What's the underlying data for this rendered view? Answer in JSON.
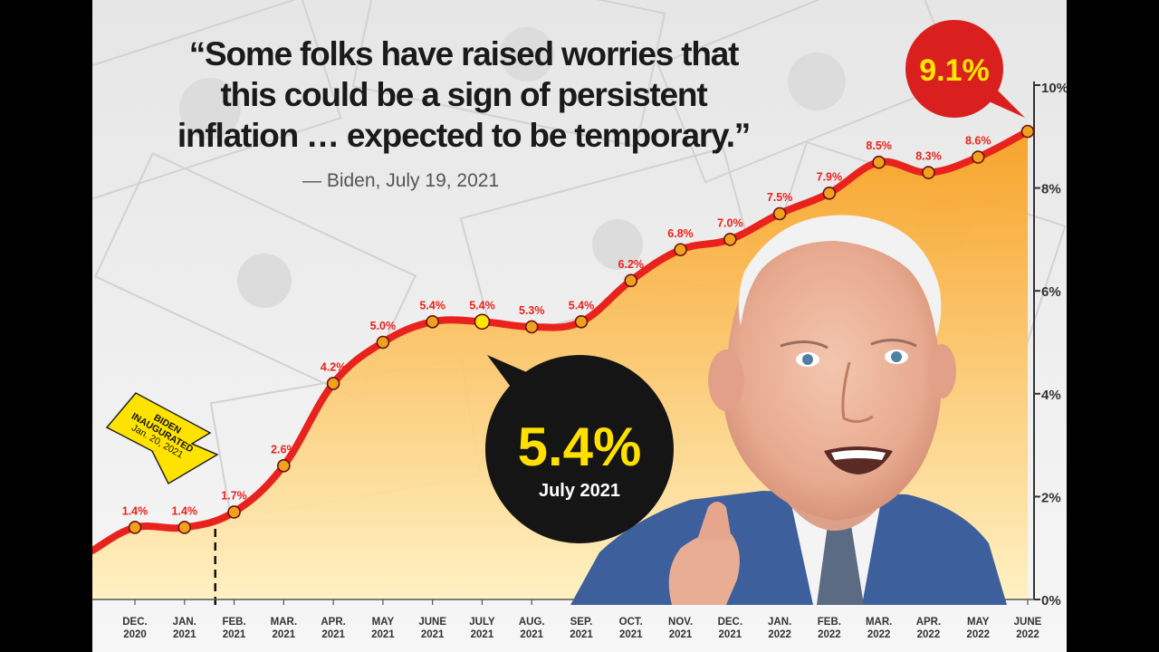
{
  "header": {
    "quote_lines": [
      "“Some folks have raised worries that",
      "this could be a sign of persistent",
      "inflation … expected to be temporary.”"
    ],
    "attribution": "— Biden, July 19, 2021"
  },
  "callouts": {
    "peak": {
      "value": "9.1%",
      "color": "#d9201f",
      "text_color": "#ffe600"
    },
    "july": {
      "value": "5.4%",
      "sub": "July 2021",
      "color": "#151515",
      "text_color": "#ffe000"
    },
    "inauguration": {
      "lines": [
        "BIDEN",
        "INAUGURATED",
        "Jan. 20, 2021"
      ],
      "color": "#ffe300"
    }
  },
  "chart_data": {
    "type": "line",
    "x": [
      "DEC. 2020",
      "JAN. 2021",
      "FEB. 2021",
      "MAR. 2021",
      "APR. 2021",
      "MAY 2021",
      "JUNE 2021",
      "JULY 2021",
      "AUG. 2021",
      "SEP. 2021",
      "OCT. 2021",
      "NOV. 2021",
      "DEC. 2021",
      "JAN. 2022",
      "FEB. 2022",
      "MAR. 2022",
      "APR. 2022",
      "MAY 2022",
      "JUNE 2022"
    ],
    "x_labels": [
      [
        "DEC.",
        "2020"
      ],
      [
        "JAN.",
        "2021"
      ],
      [
        "FEB.",
        "2021"
      ],
      [
        "MAR.",
        "2021"
      ],
      [
        "APR.",
        "2021"
      ],
      [
        "MAY",
        "2021"
      ],
      [
        "JUNE",
        "2021"
      ],
      [
        "JULY",
        "2021"
      ],
      [
        "AUG.",
        "2021"
      ],
      [
        "SEP.",
        "2021"
      ],
      [
        "OCT.",
        "2021"
      ],
      [
        "NOV.",
        "2021"
      ],
      [
        "DEC.",
        "2021"
      ],
      [
        "JAN.",
        "2022"
      ],
      [
        "FEB.",
        "2022"
      ],
      [
        "MAR.",
        "2022"
      ],
      [
        "APR.",
        "2022"
      ],
      [
        "MAY",
        "2022"
      ],
      [
        "JUNE",
        "2022"
      ]
    ],
    "series": [
      {
        "values": [
          1.4,
          1.4,
          1.7,
          2.6,
          4.2,
          5.0,
          5.4,
          5.4,
          5.3,
          5.4,
          6.2,
          6.8,
          7.0,
          7.5,
          7.9,
          8.5,
          8.3,
          8.6,
          9.1
        ]
      }
    ],
    "data_labels": [
      "1.4%",
      "1.4%",
      "1.7%",
      "2.6%",
      "4.2%",
      "5.0%",
      "5.4%",
      "5.4%",
      "5.3%",
      "5.4%",
      "6.2%",
      "6.8%",
      "7.0%",
      "7.5%",
      "7.9%",
      "8.5%",
      "8.3%",
      "8.6%",
      ""
    ],
    "y_ticks": [
      0,
      2,
      4,
      6,
      8,
      10
    ],
    "y_tick_labels": [
      "0%",
      "2%",
      "4%",
      "6%",
      "8%",
      "10%"
    ],
    "ylim": [
      0,
      10
    ],
    "y_axis_position": "right",
    "grid": false,
    "highlight_point_index": 7,
    "colors": {
      "line": "#e8231d",
      "marker": "#f0a11e",
      "highlight_marker": "#ffe600",
      "area_top": "#f8a020",
      "area_bottom": "#fff1c0",
      "data_label": "#e8231d"
    }
  }
}
